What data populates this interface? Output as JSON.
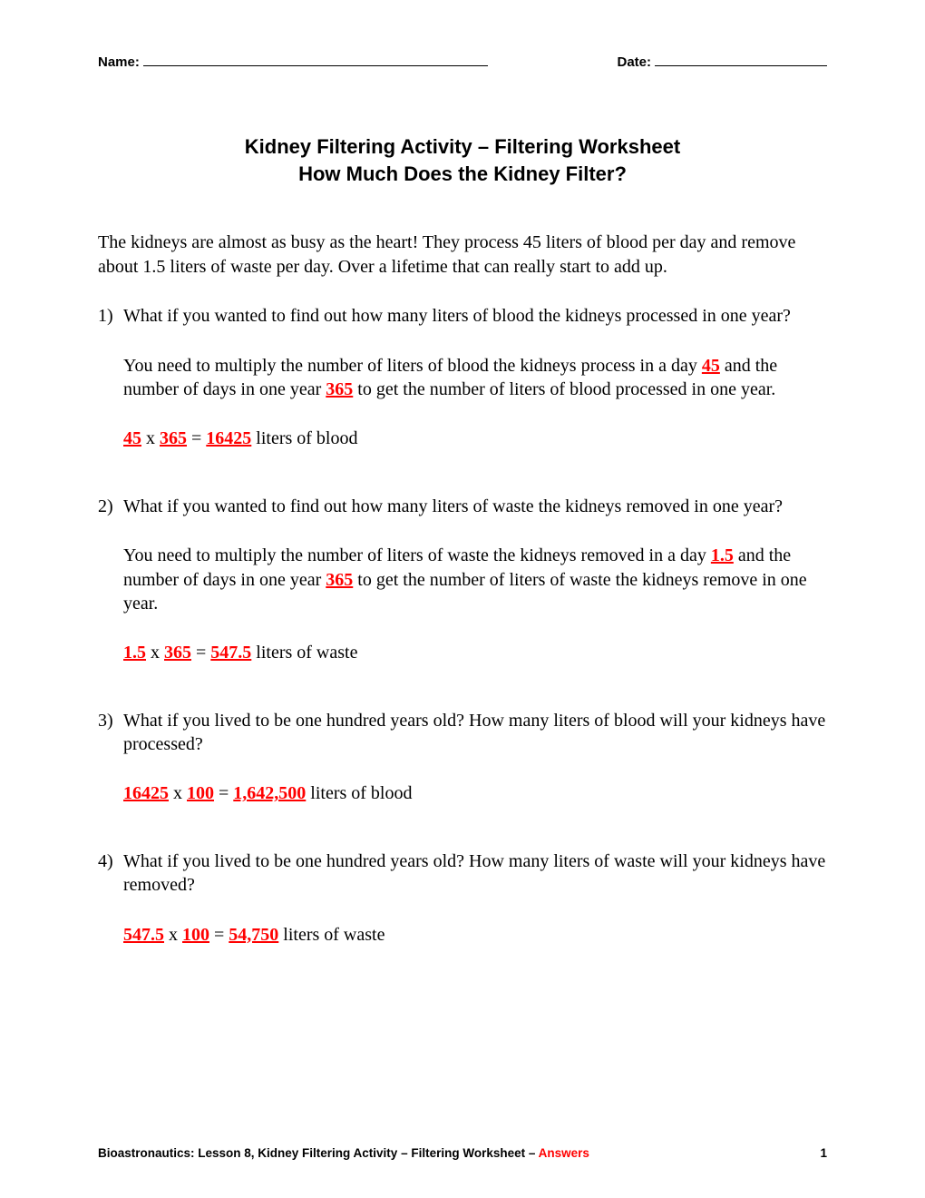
{
  "header": {
    "name_label": "Name:",
    "date_label": "Date:"
  },
  "title": {
    "line1": "Kidney Filtering Activity – Filtering Worksheet",
    "line2": "How Much Does the Kidney Filter?"
  },
  "intro": "The kidneys are almost as busy as the heart! They process 45 liters of blood per day and remove about 1.5 liters of waste per day. Over a lifetime that can really start to add up.",
  "q1": {
    "num": "1)",
    "text": "What if you wanted to find out how many liters of blood the kidneys processed in one year?",
    "exp_pre": "You need to multiply the number of liters of blood the kidneys process in a day ",
    "v1": "45",
    "exp_mid": " and the number of days in one year ",
    "v2": "365",
    "exp_post": " to get the number of liters of blood processed in one year.",
    "eq_a": "45",
    "eq_x": " x ",
    "eq_b": "365",
    "eq_eq": " = ",
    "eq_r": "16425",
    "eq_unit": " liters of blood"
  },
  "q2": {
    "num": "2)",
    "text": "What if you wanted to find out how many liters of waste the kidneys removed in one year?",
    "exp_pre": "You need to multiply the number of liters of waste the kidneys removed in a day ",
    "v1": "1.5",
    "exp_mid": " and the number of days in one year ",
    "v2": "365",
    "exp_post": " to get the number of liters of waste the kidneys remove in one year.",
    "eq_a": "1.5",
    "eq_x": " x ",
    "eq_b": "365",
    "eq_eq": " = ",
    "eq_r": "547.5",
    "eq_unit": " liters of waste"
  },
  "q3": {
    "num": "3)",
    "text": "What if you lived to be one hundred years old?  How many liters of blood will your kidneys have processed?",
    "eq_a": "16425",
    "eq_x": " x ",
    "eq_b": "100",
    "eq_eq": " = ",
    "eq_r": "1,642,500",
    "eq_unit": " liters of blood"
  },
  "q4": {
    "num": "4)",
    "text": "What if you lived to be one hundred years old?  How many liters of waste will your kidneys have removed?",
    "eq_a": "547.5",
    "eq_x": " x ",
    "eq_b": "100",
    "eq_eq": " = ",
    "eq_r": "54,750",
    "eq_unit": " liters of waste"
  },
  "footer": {
    "text": "Bioastronautics: Lesson 8, Kidney Filtering Activity – Filtering Worksheet – ",
    "answers": "Answers",
    "page": "1"
  },
  "colors": {
    "answer_color": "#ff0000",
    "text_color": "#000000",
    "background": "#ffffff"
  }
}
